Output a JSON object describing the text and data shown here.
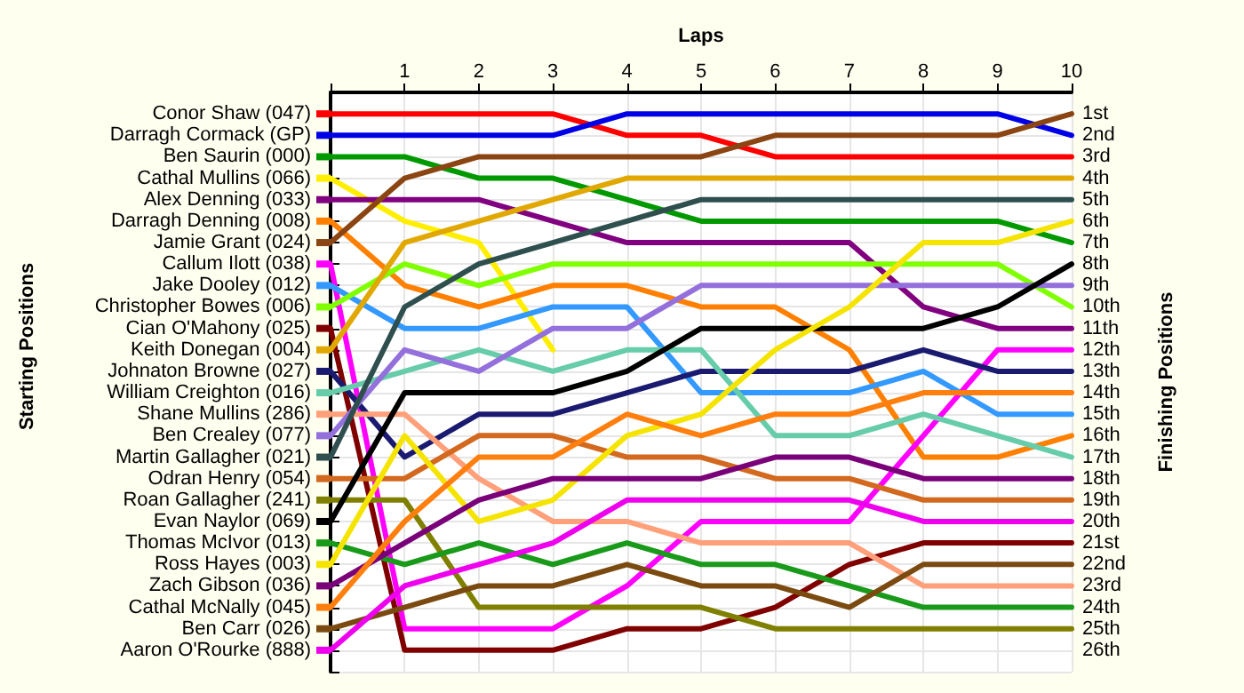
{
  "chart_data": {
    "type": "line",
    "xlabel": "Laps",
    "ylabel": "Finishing Positions",
    "annotations": [
      "Starting Positions"
    ],
    "x": [
      0,
      1,
      2,
      3,
      4,
      5,
      6,
      7,
      8,
      9,
      10
    ],
    "xlim": [
      0,
      10
    ],
    "xticks": [
      {
        "value": 0,
        "label": null
      },
      1,
      2,
      3,
      4,
      5,
      6,
      7,
      8,
      9,
      10
    ],
    "ylim": [
      27,
      0
    ],
    "yticks": [
      {
        "value": 0,
        "label": null
      },
      {
        "value": 1,
        "label": "1st"
      },
      {
        "value": 2,
        "label": "2nd"
      },
      {
        "value": 3,
        "label": "3rd"
      },
      {
        "value": 4,
        "label": "4th"
      },
      {
        "value": 5,
        "label": "5th"
      },
      {
        "value": 6,
        "label": "6th"
      },
      {
        "value": 7,
        "label": "7th"
      },
      {
        "value": 8,
        "label": "8th"
      },
      {
        "value": 9,
        "label": "9th"
      },
      {
        "value": 10,
        "label": "10th"
      },
      {
        "value": 11,
        "label": "11th"
      },
      {
        "value": 12,
        "label": "12th"
      },
      {
        "value": 13,
        "label": "13th"
      },
      {
        "value": 14,
        "label": "14th"
      },
      {
        "value": 15,
        "label": "15th"
      },
      {
        "value": 16,
        "label": "16th"
      },
      {
        "value": 17,
        "label": "17th"
      },
      {
        "value": 18,
        "label": "18th"
      },
      {
        "value": 19,
        "label": "19th"
      },
      {
        "value": 20,
        "label": "20th"
      },
      {
        "value": 21,
        "label": "21st"
      },
      {
        "value": 22,
        "label": "22nd"
      },
      {
        "value": 23,
        "label": "23rd"
      },
      {
        "value": 24,
        "label": "24th"
      },
      {
        "value": 25,
        "label": "25th"
      },
      {
        "value": 26,
        "label": "26th"
      },
      {
        "value": 27,
        "label": null
      }
    ],
    "grid": true,
    "marker": "none",
    "line_style": "solid",
    "legend": "left",
    "series": [
      {
        "name": "Conor Shaw (047)",
        "color": "#ff0000",
        "values": [
          1,
          1,
          1,
          1,
          2,
          2,
          3,
          3,
          3,
          3,
          3
        ]
      },
      {
        "name": "Darragh Cormack (GP)",
        "color": "#0000e6",
        "values": [
          2,
          2,
          2,
          2,
          1,
          1,
          1,
          1,
          1,
          1,
          2
        ]
      },
      {
        "name": "Ben Saurin (000)",
        "color": "#009900",
        "values": [
          3,
          3,
          4,
          4,
          5,
          6,
          6,
          6,
          6,
          6,
          7
        ]
      },
      {
        "name": "Cathal Mullins (066)",
        "color": "#ffee00",
        "values": [
          4,
          6,
          7,
          12,
          null,
          null,
          null,
          null,
          null,
          null,
          null
        ]
      },
      {
        "name": "Alex Denning (033)",
        "color": "#800080",
        "values": [
          5,
          5,
          5,
          6,
          7,
          7,
          7,
          7,
          10,
          11,
          11
        ]
      },
      {
        "name": "Darragh Denning (008)",
        "color": "#ff8000",
        "values": [
          6,
          9,
          10,
          9,
          9,
          10,
          10,
          12,
          17,
          17,
          16
        ]
      },
      {
        "name": "Jamie Grant (024)",
        "color": "#8b4513",
        "values": [
          7,
          4,
          3,
          3,
          3,
          3,
          2,
          2,
          2,
          2,
          1
        ]
      },
      {
        "name": "Callum Ilott (038)",
        "color": "#ff00ff",
        "values": [
          8,
          25,
          25,
          25,
          23,
          20,
          20,
          20,
          16,
          12,
          12
        ]
      },
      {
        "name": "Jake Dooley (012)",
        "color": "#3399ff",
        "values": [
          9,
          11,
          11,
          10,
          10,
          14,
          14,
          14,
          13,
          15,
          15
        ]
      },
      {
        "name": "Christopher Bowes (006)",
        "color": "#80ff00",
        "values": [
          10,
          8,
          9,
          8,
          8,
          8,
          8,
          8,
          8,
          8,
          10
        ]
      },
      {
        "name": "Cian O'Mahony (025)",
        "color": "#800000",
        "values": [
          11,
          26,
          26,
          26,
          25,
          25,
          24,
          22,
          21,
          21,
          21
        ]
      },
      {
        "name": "Keith Donegan (004)",
        "color": "#e0a800",
        "values": [
          12,
          7,
          6,
          5,
          4,
          4,
          4,
          4,
          4,
          4,
          4
        ]
      },
      {
        "name": "Johnaton Browne (027)",
        "color": "#1a1a70",
        "values": [
          13,
          17,
          15,
          15,
          14,
          13,
          13,
          13,
          12,
          13,
          13
        ]
      },
      {
        "name": "William Creighton (016)",
        "color": "#66ccaa",
        "values": [
          14,
          13,
          12,
          13,
          12,
          12,
          16,
          16,
          15,
          16,
          17
        ]
      },
      {
        "name": "Shane Mullins (286)",
        "color": "#ffa07a",
        "values": [
          15,
          15,
          18,
          20,
          20,
          21,
          21,
          21,
          23,
          23,
          23
        ]
      },
      {
        "name": "Ben Crealey (077)",
        "color": "#9370db",
        "values": [
          16,
          12,
          13,
          11,
          11,
          9,
          9,
          9,
          9,
          9,
          9
        ]
      },
      {
        "name": "Martin Gallagher (021)",
        "color": "#2f4f4f",
        "values": [
          17,
          10,
          8,
          7,
          6,
          5,
          5,
          5,
          5,
          5,
          5
        ]
      },
      {
        "name": "Odran Henry (054)",
        "color": "#d2691e",
        "values": [
          18,
          18,
          16,
          16,
          17,
          17,
          18,
          18,
          19,
          19,
          19
        ]
      },
      {
        "name": "Roan Gallagher (241)",
        "color": "#808000",
        "values": [
          19,
          19,
          24,
          24,
          24,
          24,
          25,
          25,
          25,
          25,
          25
        ]
      },
      {
        "name": "Evan Naylor (069)",
        "color": "#000000",
        "values": [
          20,
          14,
          14,
          14,
          13,
          11,
          11,
          11,
          11,
          10,
          8
        ]
      },
      {
        "name": "Thomas McIvor (013)",
        "color": "#1a9a1a",
        "values": [
          21,
          22,
          21,
          22,
          21,
          22,
          22,
          23,
          24,
          24,
          24
        ]
      },
      {
        "name": "Ross Hayes (003)",
        "color": "#f5e400",
        "values": [
          22,
          16,
          20,
          19,
          16,
          15,
          12,
          10,
          7,
          7,
          6
        ]
      },
      {
        "name": "Zach Gibson (036)",
        "color": "#7a007a",
        "values": [
          23,
          21,
          19,
          18,
          18,
          18,
          17,
          17,
          18,
          18,
          18
        ]
      },
      {
        "name": "Cathal McNally (045)",
        "color": "#ff7f0e",
        "values": [
          24,
          20,
          17,
          17,
          15,
          16,
          15,
          15,
          14,
          14,
          14
        ]
      },
      {
        "name": "Ben Carr (026)",
        "color": "#7a4a10",
        "values": [
          25,
          24,
          23,
          23,
          22,
          23,
          23,
          24,
          22,
          22,
          22
        ]
      },
      {
        "name": "Aaron O'Rourke (888)",
        "color": "#ee00ee",
        "values": [
          26,
          23,
          22,
          21,
          19,
          19,
          19,
          19,
          20,
          20,
          20
        ]
      }
    ]
  }
}
